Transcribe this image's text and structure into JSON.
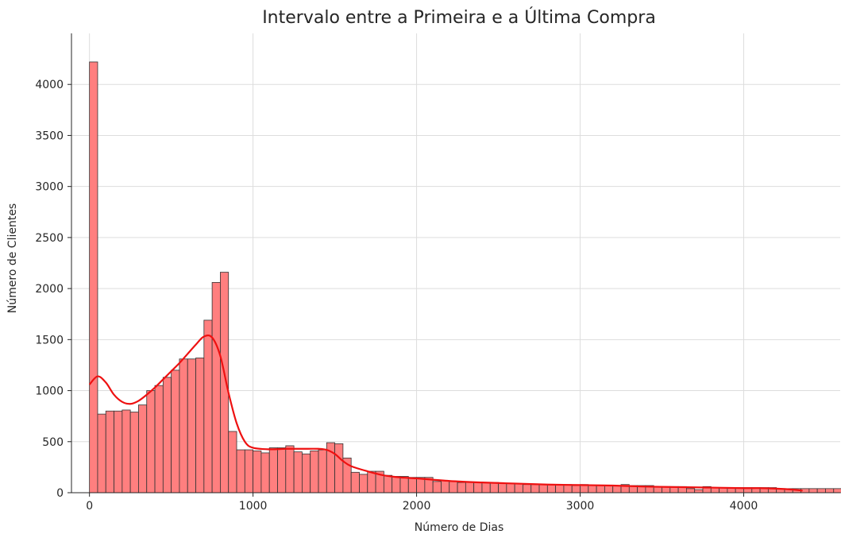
{
  "chart_data": {
    "type": "bar",
    "title": "Intervalo entre a Primeira e a Última Compra",
    "xlabel": "Número de Dias",
    "ylabel": "Número de Clientes",
    "xlim": [
      -110,
      4590
    ],
    "ylim": [
      0,
      4500
    ],
    "xticks": [
      0,
      1000,
      2000,
      3000,
      4000
    ],
    "yticks": [
      0,
      500,
      1000,
      1500,
      2000,
      2500,
      3000,
      3500,
      4000
    ],
    "grid": true,
    "bin_width": 50,
    "bin_start": 0,
    "bar_color": "#ff7f7f",
    "bar_edge_color": "#333333",
    "kde_color": "#ee1111",
    "counts": [
      4220,
      770,
      800,
      800,
      810,
      790,
      860,
      1000,
      1050,
      1130,
      1200,
      1310,
      1310,
      1320,
      1690,
      2060,
      2160,
      600,
      420,
      420,
      410,
      390,
      440,
      440,
      460,
      400,
      380,
      410,
      420,
      490,
      480,
      340,
      200,
      180,
      210,
      210,
      170,
      160,
      160,
      150,
      150,
      150,
      110,
      120,
      110,
      100,
      100,
      100,
      100,
      100,
      90,
      90,
      90,
      80,
      80,
      80,
      80,
      80,
      80,
      70,
      80,
      70,
      70,
      70,
      70,
      80,
      70,
      70,
      70,
      60,
      60,
      60,
      60,
      40,
      30,
      60,
      50,
      50,
      50,
      50,
      50,
      50,
      50,
      50,
      40,
      40,
      40,
      40,
      40,
      40,
      40,
      40
    ],
    "kde": {
      "x": [
        0,
        50,
        100,
        150,
        200,
        250,
        300,
        350,
        400,
        450,
        500,
        550,
        600,
        650,
        700,
        750,
        800,
        850,
        900,
        950,
        1000,
        1100,
        1200,
        1300,
        1400,
        1450,
        1500,
        1550,
        1600,
        1700,
        1800,
        1900,
        2000,
        2200,
        2400,
        2600,
        2800,
        3000,
        3200,
        3400,
        3600,
        3800,
        4000,
        4100,
        4200,
        4300,
        4360
      ],
      "y": [
        1060,
        1140,
        1080,
        960,
        890,
        870,
        900,
        960,
        1030,
        1110,
        1190,
        1270,
        1360,
        1450,
        1530,
        1520,
        1340,
        980,
        680,
        500,
        440,
        425,
        430,
        430,
        430,
        420,
        380,
        310,
        260,
        210,
        170,
        150,
        140,
        115,
        100,
        90,
        80,
        75,
        70,
        60,
        55,
        50,
        45,
        45,
        40,
        30,
        20
      ]
    }
  }
}
